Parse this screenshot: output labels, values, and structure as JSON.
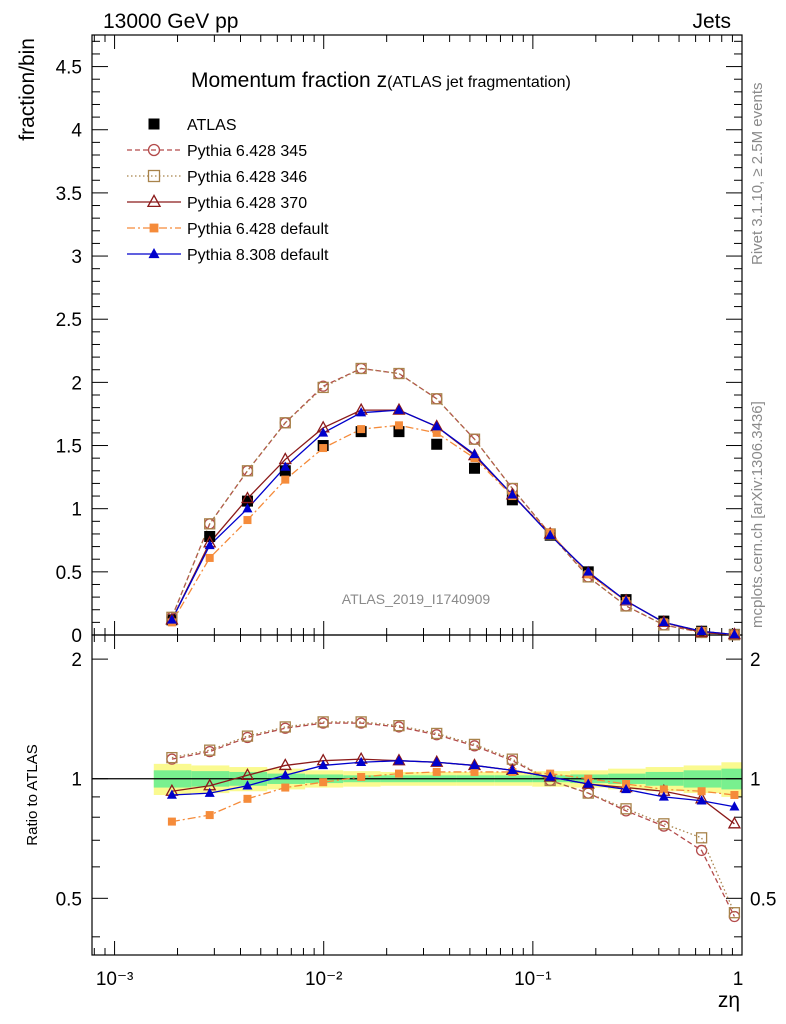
{
  "header": {
    "left": "13000 GeV pp",
    "right": "Jets"
  },
  "side_labels": {
    "rivet": "Rivet 3.1.10, ≥ 2.5M events",
    "mcplots": "mcplots.cern.ch [arXiv:1306.3436]"
  },
  "chart_data": {
    "type": "line",
    "title_main": "Momentum fraction z",
    "title_sub": "(ATLAS jet fragmentation)",
    "watermark": "ATLAS_2019_I1740909",
    "xlabel": "zη",
    "ylabel": "fraction/bin",
    "ratio_ylabel": "Ratio to ATLAS",
    "xscale": "log",
    "xlim": [
      0.00078,
      1.0
    ],
    "ylim": [
      0,
      4.75
    ],
    "ratio_ylim": [
      0.36,
      2.3
    ],
    "x_tick_labels": [
      "10⁻³",
      "10⁻²",
      "10⁻¹",
      "1"
    ],
    "y_tick_labels": [
      "0",
      "0.5",
      "1",
      "1.5",
      "2",
      "2.5",
      "3",
      "3.5",
      "4",
      "4.5"
    ],
    "ratio_tick_labels": [
      "0.5",
      "1",
      "2"
    ],
    "legend_position": "top-left",
    "x": [
      0.00188,
      0.00285,
      0.00432,
      0.00655,
      0.00994,
      0.0151,
      0.0229,
      0.0347,
      0.0526,
      0.0798,
      0.121,
      0.184,
      0.279,
      0.423,
      0.641,
      0.92
    ],
    "series": [
      {
        "name": "ATLAS",
        "style": "data",
        "color": "#000000",
        "values": [
          0.12,
          0.78,
          1.06,
          1.3,
          1.5,
          1.61,
          1.61,
          1.51,
          1.32,
          1.07,
          0.79,
          0.5,
          0.28,
          0.11,
          0.03,
          0.005
        ],
        "ratio_values": [
          1,
          1,
          1,
          1,
          1,
          1,
          1,
          1,
          1,
          1,
          1,
          1,
          1,
          1,
          1,
          1
        ]
      },
      {
        "name": "Pythia 6.428 345",
        "style": "open-circle-dashed",
        "color": "#b34a4a",
        "values": [
          0.14,
          0.88,
          1.3,
          1.68,
          1.97,
          2.11,
          2.07,
          1.87,
          1.55,
          1.16,
          0.8,
          0.46,
          0.23,
          0.08,
          0.02,
          0.002
        ],
        "ratio_values": [
          1.12,
          1.17,
          1.27,
          1.34,
          1.38,
          1.38,
          1.35,
          1.29,
          1.21,
          1.11,
          0.99,
          0.92,
          0.83,
          0.76,
          0.66,
          0.45
        ]
      },
      {
        "name": "Pythia 6.428 346",
        "style": "open-square-dotted",
        "color": "#a8834b",
        "values": [
          0.14,
          0.88,
          1.3,
          1.68,
          1.96,
          2.11,
          2.07,
          1.87,
          1.55,
          1.16,
          0.8,
          0.46,
          0.23,
          0.08,
          0.02,
          0.002
        ],
        "ratio_values": [
          1.13,
          1.18,
          1.28,
          1.35,
          1.39,
          1.39,
          1.36,
          1.3,
          1.22,
          1.12,
          0.99,
          0.92,
          0.84,
          0.77,
          0.71,
          0.46
        ]
      },
      {
        "name": "Pythia 6.428 370",
        "style": "open-triangle-solid",
        "color": "#8b1a1a",
        "values": [
          0.12,
          0.73,
          1.08,
          1.39,
          1.64,
          1.78,
          1.78,
          1.65,
          1.42,
          1.11,
          0.8,
          0.49,
          0.27,
          0.1,
          0.02,
          0.003
        ],
        "ratio_values": [
          0.93,
          0.96,
          1.02,
          1.08,
          1.11,
          1.12,
          1.11,
          1.1,
          1.08,
          1.05,
          1.01,
          0.97,
          0.95,
          0.93,
          0.89,
          0.77
        ]
      },
      {
        "name": "Pythia 6.428 default",
        "style": "filled-square-dashdot",
        "color": "#f58b3a",
        "values": [
          0.1,
          0.61,
          0.91,
          1.23,
          1.48,
          1.63,
          1.66,
          1.6,
          1.4,
          1.1,
          0.81,
          0.48,
          0.27,
          0.1,
          0.03,
          0.005
        ],
        "ratio_values": [
          0.78,
          0.81,
          0.89,
          0.95,
          0.98,
          1.01,
          1.03,
          1.04,
          1.04,
          1.04,
          1.03,
          1.0,
          0.97,
          0.94,
          0.93,
          0.91
        ]
      },
      {
        "name": "Pythia 8.308 default",
        "style": "filled-triangle-solid",
        "color": "#0000cc",
        "values": [
          0.12,
          0.71,
          1.0,
          1.33,
          1.6,
          1.76,
          1.78,
          1.65,
          1.43,
          1.11,
          0.79,
          0.5,
          0.27,
          0.1,
          0.03,
          0.004
        ],
        "ratio_values": [
          0.91,
          0.92,
          0.96,
          1.02,
          1.08,
          1.1,
          1.11,
          1.1,
          1.08,
          1.05,
          1.01,
          0.97,
          0.94,
          0.9,
          0.88,
          0.85
        ]
      }
    ],
    "bands": {
      "x_low": [
        0.00154,
        0.00233,
        0.00354,
        0.00537,
        0.00815,
        0.0124,
        0.0187,
        0.0284,
        0.0431,
        0.0654,
        0.0993,
        0.151,
        0.229,
        0.346,
        0.526,
        0.797
      ],
      "x_high": [
        0.00233,
        0.00354,
        0.00537,
        0.00815,
        0.0124,
        0.0187,
        0.0284,
        0.0431,
        0.0654,
        0.0993,
        0.151,
        0.229,
        0.346,
        0.526,
        0.797,
        1.0
      ],
      "inner_color": "#79f08f",
      "outer_color": "#fafa90",
      "inner_half": [
        0.05,
        0.045,
        0.04,
        0.03,
        0.025,
        0.02,
        0.02,
        0.02,
        0.02,
        0.02,
        0.02,
        0.025,
        0.03,
        0.04,
        0.05,
        0.06
      ],
      "outer_half": [
        0.09,
        0.08,
        0.07,
        0.06,
        0.05,
        0.045,
        0.04,
        0.04,
        0.04,
        0.04,
        0.045,
        0.05,
        0.06,
        0.07,
        0.08,
        0.1
      ]
    }
  }
}
